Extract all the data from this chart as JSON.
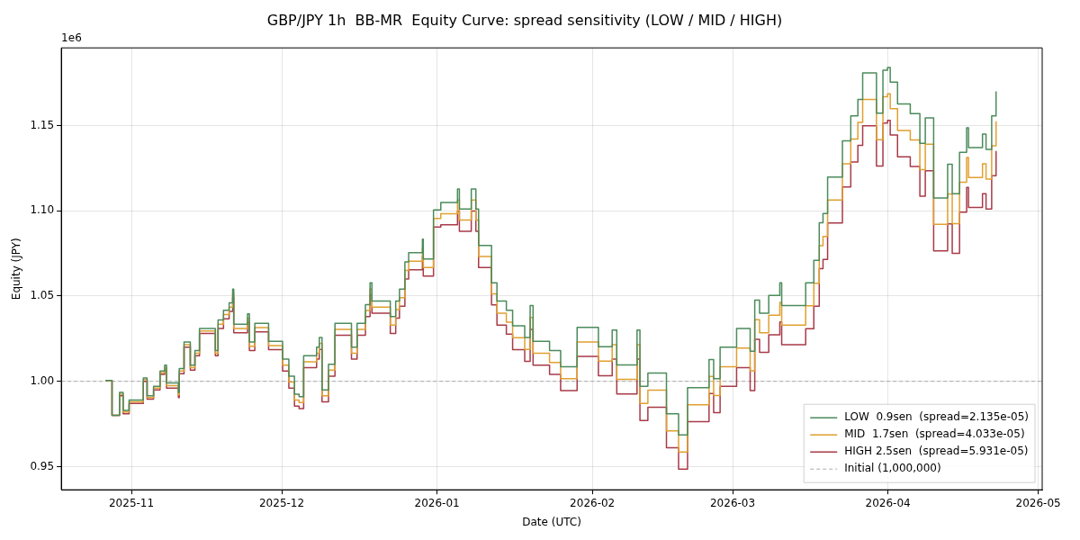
{
  "chart_data": {
    "type": "step",
    "title": "GBP/JPY 1h  BB-MR  Equity Curve: spread sensitivity (LOW / MID / HIGH)",
    "xlabel": "Date (UTC)",
    "ylabel": "Equity (JPY)",
    "annotations": [
      "1e6"
    ],
    "x": [
      "2025-10-26T20:00",
      "2025-10-28T03:00",
      "2025-10-29T15:00",
      "2025-10-30T08:00",
      "2025-10-31T13:00",
      "2025-11-03T09:00",
      "2025-11-04T03:00",
      "2025-11-05T10:00",
      "2025-11-06T17:00",
      "2025-11-07T15:00",
      "2025-11-08T00:00",
      "2025-11-10T09:00",
      "2025-11-10T13:00",
      "2025-11-11T12:00",
      "2025-11-12T18:00",
      "2025-11-13T16:00",
      "2025-11-14T14:00",
      "2025-11-17T18:00",
      "2025-11-18T07:00",
      "2025-11-19T09:00",
      "2025-11-20T12:00",
      "2025-11-21T05:00",
      "2025-11-21T10:00",
      "2025-11-24T04:00",
      "2025-11-24T13:00",
      "2025-11-25T15:00",
      "2025-11-28T09:00",
      "2025-12-01T04:00",
      "2025-12-02T10:00",
      "2025-12-03T13:00",
      "2025-12-04T11:00",
      "2025-12-05T09:00",
      "2025-12-07T23:00",
      "2025-12-08T12:00",
      "2025-12-09T01:00",
      "2025-12-10T08:00",
      "2025-12-11T15:00",
      "2025-12-14T22:00",
      "2025-12-16T01:00",
      "2025-12-17T17:00",
      "2025-12-18T15:00",
      "2025-12-19T00:00",
      "2025-12-22T16:00",
      "2025-12-23T18:00",
      "2025-12-24T12:00",
      "2025-12-25T14:00",
      "2025-12-26T08:00",
      "2025-12-29T02:00",
      "2025-12-29T06:00",
      "2025-12-31T07:00",
      "2026-01-01T18:00",
      "2026-01-05T02:00",
      "2026-01-05T11:00",
      "2026-01-07T20:00",
      "2026-01-08T18:00",
      "2026-01-09T07:00",
      "2026-01-11T21:00",
      "2026-01-12T23:00",
      "2026-01-14T20:00",
      "2026-01-16T02:00",
      "2026-01-18T12:00",
      "2026-01-19T14:00",
      "2026-01-20T04:00",
      "2026-01-23T11:00",
      "2026-01-25T16:00",
      "2026-01-28T23:00",
      "2026-02-02T05:00",
      "2026-02-04T23:00",
      "2026-02-05T21:00",
      "2026-02-09T22:00",
      "2026-02-10T12:00",
      "2026-02-12T02:00",
      "2026-02-15T19:00",
      "2026-02-18T05:00",
      "2026-02-20T00:00",
      "2026-02-24T07:00",
      "2026-02-25T05:00",
      "2026-02-26T12:00",
      "2026-03-01T19:00",
      "2026-03-04T12:00",
      "2026-03-05T10:00",
      "2026-03-06T09:00",
      "2026-03-08T05:00",
      "2026-03-10T10:00",
      "2026-03-10T19:00",
      "2026-03-15T14:00",
      "2026-03-17T05:00",
      "2026-03-18T07:00",
      "2026-03-19T01:00",
      "2026-03-19T23:00",
      "2026-03-22T22:00",
      "2026-03-24T14:00",
      "2026-03-26T00:00",
      "2026-03-26T23:00",
      "2026-03-29T17:00",
      "2026-03-31T00:00",
      "2026-03-31T22:00",
      "2026-04-01T11:00",
      "2026-04-02T22:00",
      "2026-04-05T11:00",
      "2026-04-07T09:00",
      "2026-04-08T11:00",
      "2026-04-10T03:00",
      "2026-04-12T22:00",
      "2026-04-13T20:00",
      "2026-04-15T07:00",
      "2026-04-16T17:00",
      "2026-04-17T02:00",
      "2026-04-19T21:00",
      "2026-04-20T14:00",
      "2026-04-21T17:00",
      "2026-04-22T14:00"
    ],
    "series": [
      {
        "name": "LOW  0.9sen  (spread=2.135e-05)",
        "color": "#4b8b5b",
        "values": [
          1.0005,
          0.98,
          0.9935,
          0.983,
          0.989,
          1.002,
          0.9915,
          0.997,
          1.006,
          1.0095,
          0.999,
          0.9935,
          1.0075,
          1.023,
          1.0095,
          1.018,
          1.031,
          1.018,
          1.036,
          1.0417,
          1.046,
          1.054,
          1.0335,
          1.0396,
          1.023,
          1.034,
          1.0235,
          1.013,
          1.003,
          0.9925,
          0.991,
          1.015,
          1.02,
          1.0257,
          0.995,
          1.01,
          1.034,
          1.02,
          1.034,
          1.045,
          1.0577,
          1.047,
          1.038,
          1.047,
          1.054,
          1.07,
          1.0754,
          1.0834,
          1.0717,
          1.1005,
          1.1048,
          1.1128,
          1.101,
          1.1128,
          1.101,
          1.0797,
          1.0578,
          1.047,
          1.0417,
          1.0326,
          1.0257,
          1.0444,
          1.0235,
          1.018,
          1.0086,
          1.0316,
          1.0203,
          1.03,
          1.0096,
          1.03,
          0.997,
          1.0048,
          0.981,
          0.9685,
          0.9963,
          1.0128,
          1.0016,
          1.02,
          1.031,
          1.0176,
          1.0476,
          1.04,
          1.0503,
          1.0578,
          1.0444,
          1.0578,
          1.071,
          1.093,
          1.0984,
          1.1198,
          1.141,
          1.1556,
          1.1653,
          1.1808,
          1.1572,
          1.1824,
          1.184,
          1.1754,
          1.1626,
          1.157,
          1.1396,
          1.1545,
          1.1075,
          1.1273,
          1.11,
          1.1342,
          1.1487,
          1.137,
          1.145,
          1.136,
          1.1556,
          1.17
        ]
      },
      {
        "name": "MID  1.7sen  (spread=4.033e-05)",
        "color": "#e0a030",
        "values": [
          1.0005,
          0.98,
          0.9925,
          0.982,
          0.988,
          1.001,
          0.9905,
          0.996,
          1.005,
          1.008,
          0.9975,
          0.992,
          1.006,
          1.0215,
          1.008,
          1.0165,
          1.0295,
          1.0165,
          1.0335,
          1.0392,
          1.0435,
          1.0515,
          1.031,
          1.0371,
          1.0205,
          1.0315,
          1.021,
          1.0095,
          0.9995,
          0.989,
          0.9875,
          1.0115,
          1.0165,
          1.0222,
          0.9915,
          1.0065,
          1.0305,
          1.0165,
          1.0305,
          1.0415,
          1.0542,
          1.0435,
          1.033,
          1.042,
          1.049,
          1.065,
          1.0704,
          1.0784,
          1.0667,
          1.0955,
          1.0983,
          1.1063,
          1.0945,
          1.1063,
          1.0945,
          1.0732,
          1.0513,
          1.04,
          1.0347,
          1.0256,
          1.0187,
          1.0374,
          1.0165,
          1.011,
          1.0016,
          1.0231,
          1.0118,
          1.0215,
          1.0011,
          1.0215,
          0.987,
          0.9948,
          0.971,
          0.9585,
          0.9863,
          1.0028,
          0.9916,
          1.0085,
          1.0195,
          1.0061,
          1.0361,
          1.0285,
          1.0388,
          1.0463,
          1.0329,
          1.0443,
          1.0575,
          1.0795,
          1.0849,
          1.1063,
          1.1275,
          1.1421,
          1.1518,
          1.1653,
          1.1417,
          1.1669,
          1.1685,
          1.1599,
          1.1471,
          1.1415,
          1.1241,
          1.139,
          1.092,
          1.1098,
          1.0925,
          1.1167,
          1.1312,
          1.1195,
          1.1275,
          1.1185,
          1.1381,
          1.1525
        ]
      },
      {
        "name": "HIGH 2.5sen  (spread=5.931e-05)",
        "color": "#a83a48",
        "values": [
          1.0005,
          0.98,
          0.9915,
          0.981,
          0.987,
          1.0,
          0.9895,
          0.995,
          1.004,
          1.0065,
          0.996,
          0.9905,
          1.0045,
          1.02,
          1.0065,
          1.015,
          1.028,
          1.015,
          1.031,
          1.0367,
          1.041,
          1.049,
          1.0285,
          1.0346,
          1.018,
          1.029,
          1.0185,
          1.006,
          0.996,
          0.9855,
          0.984,
          1.008,
          1.013,
          1.0187,
          0.988,
          1.003,
          1.027,
          1.013,
          1.027,
          1.038,
          1.0507,
          1.04,
          1.028,
          1.037,
          1.044,
          1.06,
          1.0654,
          1.0734,
          1.0617,
          1.0905,
          1.0918,
          1.0998,
          1.088,
          1.0998,
          1.088,
          1.0667,
          1.0448,
          1.033,
          1.0277,
          1.0186,
          1.0117,
          1.0304,
          1.0095,
          1.004,
          0.9946,
          1.0146,
          1.0033,
          1.013,
          0.9926,
          1.013,
          0.977,
          0.9848,
          0.961,
          0.9485,
          0.9763,
          0.9928,
          0.9816,
          0.997,
          1.008,
          0.9946,
          1.0246,
          1.017,
          1.0273,
          1.0348,
          1.0214,
          1.0308,
          1.044,
          1.066,
          1.0714,
          1.0928,
          1.114,
          1.1286,
          1.1383,
          1.1498,
          1.1262,
          1.1514,
          1.153,
          1.1444,
          1.1316,
          1.126,
          1.1086,
          1.1235,
          1.0765,
          1.0923,
          1.075,
          1.0992,
          1.1137,
          1.102,
          1.11,
          1.101,
          1.1206,
          1.135
        ]
      }
    ],
    "ref_lines": [
      {
        "axis": "y",
        "value": 1,
        "label": "Initial (1,000,000)",
        "color": "#aaaaaa",
        "line_style": "dashed"
      }
    ],
    "xlim": [
      "2025-10-18T00:00",
      "2026-05-01T19:00"
    ],
    "xticks": [
      "2025-11",
      "2025-12",
      "2026-01",
      "2026-02",
      "2026-03",
      "2026-04",
      "2026-05"
    ],
    "ylim": [
      0.9364,
      1.1955
    ],
    "yticks": [
      0.95,
      {
        "value": 1,
        "label": "1.00"
      },
      1.05,
      {
        "value": 1.1,
        "label": "1.10"
      },
      1.15
    ],
    "grid": true,
    "legend": "bottom right"
  }
}
